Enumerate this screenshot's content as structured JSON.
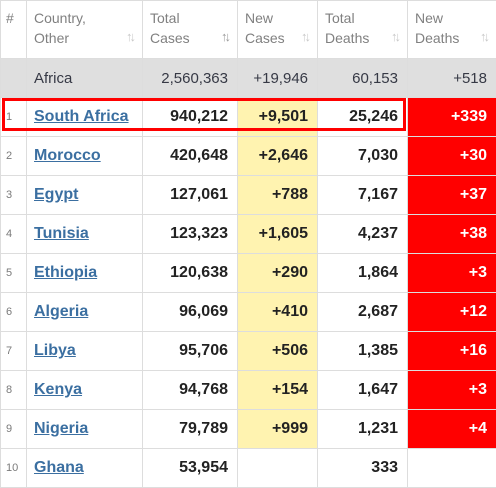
{
  "headers": {
    "num": "#",
    "country": "Country,\nOther",
    "total_cases": "Total\nCases",
    "new_cases": "New\nCases",
    "total_deaths": "Total\nDeaths",
    "new_deaths": "New\nDeaths"
  },
  "sort_icons": {
    "country": "sort-arrows-icon",
    "total_cases": "sort-descending-icon",
    "new_cases": "sort-arrows-icon",
    "total_deaths": "sort-arrows-icon",
    "new_deaths": "sort-arrows-icon"
  },
  "sort_glyph": "↑↓",
  "total_row": {
    "country": "Africa",
    "total_cases": "2,560,363",
    "new_cases": "+19,946",
    "total_deaths": "60,153",
    "new_deaths": "+518"
  },
  "rows": [
    {
      "num": "1",
      "country": "South Africa",
      "total_cases": "940,212",
      "new_cases": "+9,501",
      "total_deaths": "25,246",
      "new_deaths": "+339"
    },
    {
      "num": "2",
      "country": "Morocco",
      "total_cases": "420,648",
      "new_cases": "+2,646",
      "total_deaths": "7,030",
      "new_deaths": "+30"
    },
    {
      "num": "3",
      "country": "Egypt",
      "total_cases": "127,061",
      "new_cases": "+788",
      "total_deaths": "7,167",
      "new_deaths": "+37"
    },
    {
      "num": "4",
      "country": "Tunisia",
      "total_cases": "123,323",
      "new_cases": "+1,605",
      "total_deaths": "4,237",
      "new_deaths": "+38"
    },
    {
      "num": "5",
      "country": "Ethiopia",
      "total_cases": "120,638",
      "new_cases": "+290",
      "total_deaths": "1,864",
      "new_deaths": "+3"
    },
    {
      "num": "6",
      "country": "Algeria",
      "total_cases": "96,069",
      "new_cases": "+410",
      "total_deaths": "2,687",
      "new_deaths": "+12"
    },
    {
      "num": "7",
      "country": "Libya",
      "total_cases": "95,706",
      "new_cases": "+506",
      "total_deaths": "1,385",
      "new_deaths": "+16"
    },
    {
      "num": "8",
      "country": "Kenya",
      "total_cases": "94,768",
      "new_cases": "+154",
      "total_deaths": "1,647",
      "new_deaths": "+3"
    },
    {
      "num": "9",
      "country": "Nigeria",
      "total_cases": "79,789",
      "new_cases": "+999",
      "total_deaths": "1,231",
      "new_deaths": "+4"
    },
    {
      "num": "10",
      "country": "Ghana",
      "total_cases": "53,954",
      "new_cases": "",
      "total_deaths": "333",
      "new_deaths": ""
    }
  ],
  "highlighted_row": "South Africa",
  "colors": {
    "new_cases_bg": "#fff3b0",
    "new_deaths_bg": "#ff0000",
    "total_row_bg": "#dfdfdf",
    "link": "#3b6fa1",
    "highlight_border": "#ff0000"
  }
}
